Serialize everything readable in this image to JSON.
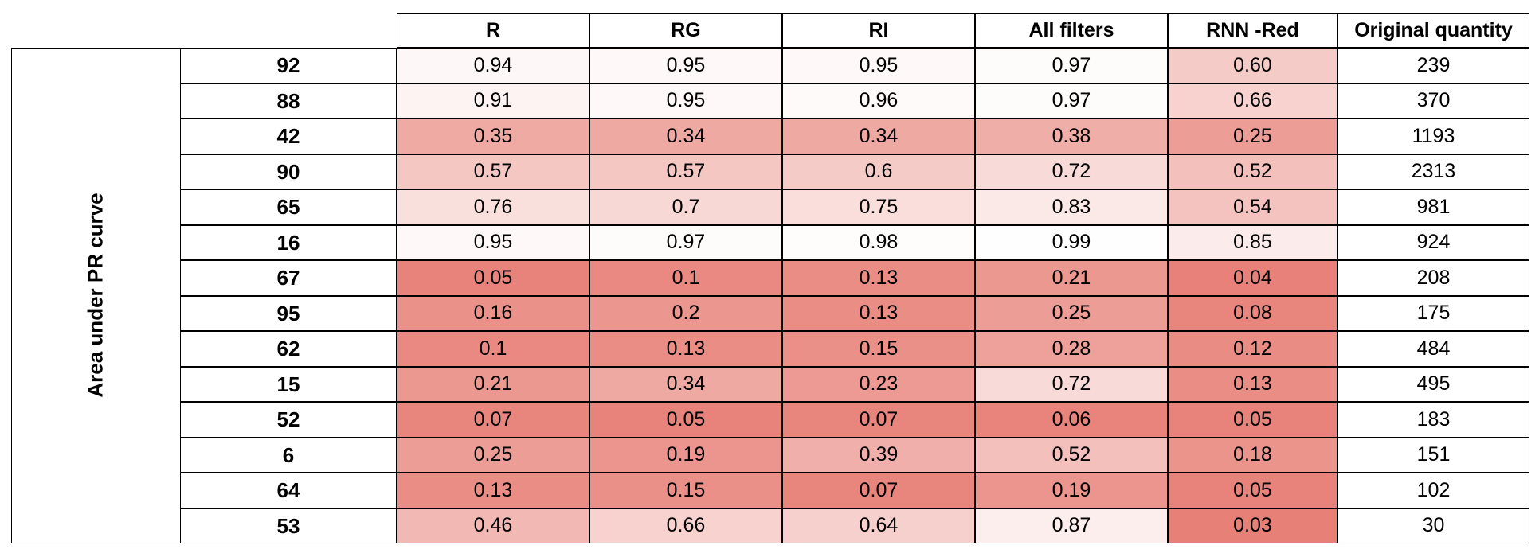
{
  "chart_data": {
    "type": "heatmap",
    "row_group_label": "Area under PR curve",
    "columns": [
      "R",
      "RG",
      "RI",
      "All filters",
      "RNN -Red"
    ],
    "extra_column": "Original quantity",
    "rows": [
      {
        "label": "92",
        "values": [
          "0.94",
          "0.95",
          "0.95",
          "0.97",
          "0.60"
        ],
        "quantity": "239"
      },
      {
        "label": "88",
        "values": [
          "0.91",
          "0.95",
          "0.96",
          "0.97",
          "0.66"
        ],
        "quantity": "370"
      },
      {
        "label": "42",
        "values": [
          "0.35",
          "0.34",
          "0.34",
          "0.38",
          "0.25"
        ],
        "quantity": "1193"
      },
      {
        "label": "90",
        "values": [
          "0.57",
          "0.57",
          "0.6",
          "0.72",
          "0.52"
        ],
        "quantity": "2313"
      },
      {
        "label": "65",
        "values": [
          "0.76",
          "0.7",
          "0.75",
          "0.83",
          "0.54"
        ],
        "quantity": "981"
      },
      {
        "label": "16",
        "values": [
          "0.95",
          "0.97",
          "0.98",
          "0.99",
          "0.85"
        ],
        "quantity": "924"
      },
      {
        "label": "67",
        "values": [
          "0.05",
          "0.1",
          "0.13",
          "0.21",
          "0.04"
        ],
        "quantity": "208"
      },
      {
        "label": "95",
        "values": [
          "0.16",
          "0.2",
          "0.13",
          "0.25",
          "0.08"
        ],
        "quantity": "175"
      },
      {
        "label": "62",
        "values": [
          "0.1",
          "0.13",
          "0.15",
          "0.28",
          "0.12"
        ],
        "quantity": "484"
      },
      {
        "label": "15",
        "values": [
          "0.21",
          "0.34",
          "0.23",
          "0.72",
          "0.13"
        ],
        "quantity": "495"
      },
      {
        "label": "52",
        "values": [
          "0.07",
          "0.05",
          "0.07",
          "0.06",
          "0.05"
        ],
        "quantity": "183"
      },
      {
        "label": "6",
        "values": [
          "0.25",
          "0.19",
          "0.39",
          "0.52",
          "0.18"
        ],
        "quantity": "151"
      },
      {
        "label": "64",
        "values": [
          "0.13",
          "0.15",
          "0.07",
          "0.19",
          "0.05"
        ],
        "quantity": "102"
      },
      {
        "label": "53",
        "values": [
          "0.46",
          "0.66",
          "0.64",
          "0.87",
          "0.03"
        ],
        "quantity": "30"
      }
    ],
    "color_scale": {
      "low": "#e67c73",
      "high": "#ffffff",
      "range": [
        0,
        1
      ]
    }
  }
}
